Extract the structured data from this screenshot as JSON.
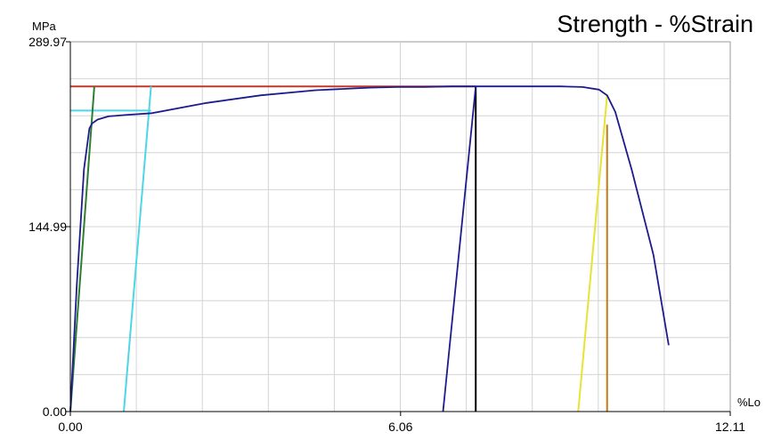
{
  "chart_data": {
    "type": "line",
    "title": "Strength - %Strain",
    "ylabel": "MPa",
    "xlabel": "%Lo",
    "xlim": [
      0,
      12.11
    ],
    "ylim": [
      0,
      289.97
    ],
    "x_ticks": [
      "0.00",
      "6.06",
      "12.11"
    ],
    "y_ticks": [
      "0.00",
      "144.99",
      "289.97"
    ],
    "grid": true,
    "series": [
      {
        "color": "#1c1c8c",
        "x": [
          0.0,
          0.12,
          0.25,
          0.35,
          0.4,
          0.5,
          0.7,
          1.0,
          1.5,
          2.5,
          3.5,
          4.5,
          5.5,
          6.0,
          6.5,
          7.0,
          7.4,
          7.6,
          8.0,
          8.5,
          9.0,
          9.4,
          9.7,
          9.85,
          10.0,
          10.3,
          10.7,
          10.98
        ],
        "y": [
          0.0,
          100.0,
          190.0,
          222.0,
          226.0,
          229.0,
          231.5,
          232.5,
          234.0,
          242.0,
          248.0,
          252.0,
          254.0,
          254.5,
          254.5,
          255.0,
          255.0,
          255.0,
          255.0,
          255.0,
          255.0,
          254.5,
          252.5,
          248.0,
          235.0,
          190.0,
          123.0,
          52.0
        ]
      },
      {
        "color": "#1c1c8c",
        "x": [
          6.84,
          7.44
        ],
        "y": [
          0.0,
          255.0
        ]
      }
    ],
    "reference_lines": [
      {
        "color": "#c0392b",
        "x": [
          0.0,
          7.44
        ],
        "y": [
          255.0,
          255.0
        ]
      },
      {
        "color": "#4fd6e6",
        "x": [
          0.0,
          1.48
        ],
        "y": [
          236.0,
          236.0
        ]
      },
      {
        "color": "#4fd6e6",
        "x": [
          0.98,
          1.48
        ],
        "y": [
          0.0,
          255.0
        ]
      },
      {
        "color": "#2e7d32",
        "x": [
          0.0,
          0.44
        ],
        "y": [
          0.0,
          255.0
        ]
      },
      {
        "color": "#000000",
        "x": [
          7.44,
          7.44
        ],
        "y": [
          0.0,
          255.0
        ]
      },
      {
        "color": "#e8e234",
        "x": [
          9.32,
          9.85
        ],
        "y": [
          0.0,
          248.0
        ]
      },
      {
        "color": "#c07a14",
        "x": [
          9.85,
          9.85
        ],
        "y": [
          0.0,
          225.0
        ]
      }
    ]
  }
}
